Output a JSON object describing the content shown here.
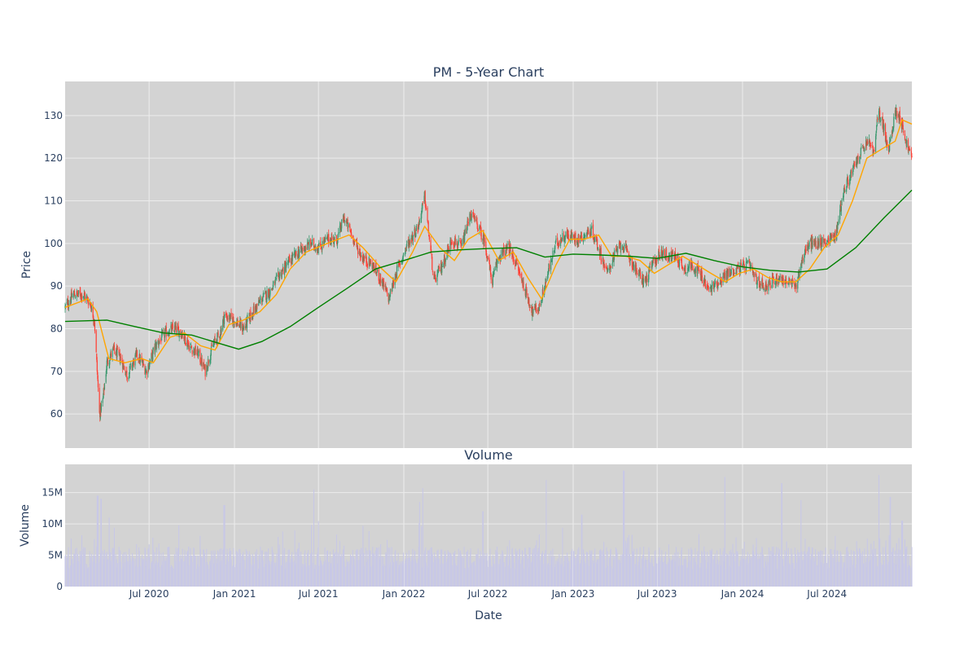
{
  "chart_data": [
    {
      "type": "candlestick",
      "title": "PM - 5-Year Chart",
      "ylabel": "Price",
      "ylim": [
        52,
        138
      ],
      "yticks": [
        60,
        70,
        80,
        90,
        100,
        110,
        120,
        130
      ],
      "x_range": [
        "2020-01-02",
        "2024-12-31"
      ],
      "grid": true,
      "legend": "none",
      "colors": {
        "plot_bg": "#d3d3d3",
        "increasing": "#3d9970",
        "decreasing": "#ff4136",
        "ma_short": "#ffa500",
        "ma_long": "#008000",
        "grid": "#ececec"
      },
      "price_path": [
        [
          "2020-01-02",
          85
        ],
        [
          "2020-01-20",
          88
        ],
        [
          "2020-02-10",
          88
        ],
        [
          "2020-02-25",
          86
        ],
        [
          "2020-03-05",
          82
        ],
        [
          "2020-03-16",
          60
        ],
        [
          "2020-03-23",
          63
        ],
        [
          "2020-04-01",
          72
        ],
        [
          "2020-04-15",
          75
        ],
        [
          "2020-05-01",
          73
        ],
        [
          "2020-05-15",
          69
        ],
        [
          "2020-06-05",
          74
        ],
        [
          "2020-06-25",
          70
        ],
        [
          "2020-07-15",
          76
        ],
        [
          "2020-08-05",
          79
        ],
        [
          "2020-08-25",
          80
        ],
        [
          "2020-09-10",
          79
        ],
        [
          "2020-09-25",
          76
        ],
        [
          "2020-10-15",
          74
        ],
        [
          "2020-10-30",
          70
        ],
        [
          "2020-11-15",
          76
        ],
        [
          "2020-12-01",
          79
        ],
        [
          "2020-12-10",
          83
        ],
        [
          "2021-01-01",
          82
        ],
        [
          "2021-01-20",
          80
        ],
        [
          "2021-02-10",
          84
        ],
        [
          "2021-03-01",
          87
        ],
        [
          "2021-03-20",
          89
        ],
        [
          "2021-04-10",
          93
        ],
        [
          "2021-05-01",
          96
        ],
        [
          "2021-05-20",
          98
        ],
        [
          "2021-06-15",
          100
        ],
        [
          "2021-07-01",
          99
        ],
        [
          "2021-07-20",
          101
        ],
        [
          "2021-08-10",
          101
        ],
        [
          "2021-08-25",
          106
        ],
        [
          "2021-09-15",
          101
        ],
        [
          "2021-10-01",
          97
        ],
        [
          "2021-10-25",
          95
        ],
        [
          "2021-11-15",
          91
        ],
        [
          "2021-11-30",
          87
        ],
        [
          "2021-12-15",
          93
        ],
        [
          "2022-01-10",
          100
        ],
        [
          "2022-02-01",
          104
        ],
        [
          "2022-02-15",
          111
        ],
        [
          "2022-03-07",
          91
        ],
        [
          "2022-03-25",
          95
        ],
        [
          "2022-04-15",
          101
        ],
        [
          "2022-05-05",
          99
        ],
        [
          "2022-05-25",
          107
        ],
        [
          "2022-06-10",
          104
        ],
        [
          "2022-06-25",
          100
        ],
        [
          "2022-07-10",
          91
        ],
        [
          "2022-07-25",
          97
        ],
        [
          "2022-08-15",
          99
        ],
        [
          "2022-09-01",
          95
        ],
        [
          "2022-09-20",
          89
        ],
        [
          "2022-10-05",
          84
        ],
        [
          "2022-10-20",
          85
        ],
        [
          "2022-11-05",
          92
        ],
        [
          "2022-11-25",
          100
        ],
        [
          "2022-12-15",
          102
        ],
        [
          "2023-01-10",
          101
        ],
        [
          "2023-01-25",
          102
        ],
        [
          "2023-02-10",
          103
        ],
        [
          "2023-02-28",
          98
        ],
        [
          "2023-03-15",
          93
        ],
        [
          "2023-03-30",
          97
        ],
        [
          "2023-04-15",
          100
        ],
        [
          "2023-05-01",
          97
        ],
        [
          "2023-05-20",
          93
        ],
        [
          "2023-06-05",
          91
        ],
        [
          "2023-06-20",
          95
        ],
        [
          "2023-07-10",
          98
        ],
        [
          "2023-07-25",
          97
        ],
        [
          "2023-08-10",
          97
        ],
        [
          "2023-08-30",
          94
        ],
        [
          "2023-09-15",
          95
        ],
        [
          "2023-10-01",
          93
        ],
        [
          "2023-10-20",
          89
        ],
        [
          "2023-11-10",
          91
        ],
        [
          "2023-12-01",
          93
        ],
        [
          "2023-12-20",
          94
        ],
        [
          "2024-01-15",
          95
        ],
        [
          "2024-02-01",
          91
        ],
        [
          "2024-02-20",
          90
        ],
        [
          "2024-03-05",
          91
        ],
        [
          "2024-03-20",
          92
        ],
        [
          "2024-04-05",
          91
        ],
        [
          "2024-04-25",
          90
        ],
        [
          "2024-05-10",
          97
        ],
        [
          "2024-05-25",
          100
        ],
        [
          "2024-06-15",
          100
        ],
        [
          "2024-07-05",
          101
        ],
        [
          "2024-07-20",
          102
        ],
        [
          "2024-08-05",
          112
        ],
        [
          "2024-08-25",
          117
        ],
        [
          "2024-09-15",
          122
        ],
        [
          "2024-09-30",
          124
        ],
        [
          "2024-10-10",
          121
        ],
        [
          "2024-10-20",
          131
        ],
        [
          "2024-10-30",
          128
        ],
        [
          "2024-11-10",
          121
        ],
        [
          "2024-11-25",
          131
        ],
        [
          "2024-12-05",
          130
        ],
        [
          "2024-12-18",
          124
        ],
        [
          "2024-12-31",
          120
        ]
      ],
      "ma_short_path": [
        [
          "2020-01-02",
          85
        ],
        [
          "2020-02-20",
          87
        ],
        [
          "2020-03-10",
          84
        ],
        [
          "2020-04-05",
          73
        ],
        [
          "2020-05-10",
          72
        ],
        [
          "2020-06-15",
          73
        ],
        [
          "2020-07-10",
          72
        ],
        [
          "2020-08-15",
          78
        ],
        [
          "2020-09-15",
          79
        ],
        [
          "2020-10-20",
          76
        ],
        [
          "2020-11-20",
          75
        ],
        [
          "2020-12-20",
          81
        ],
        [
          "2021-01-20",
          82
        ],
        [
          "2021-02-25",
          84
        ],
        [
          "2021-04-01",
          88
        ],
        [
          "2021-05-01",
          94
        ],
        [
          "2021-06-05",
          98
        ],
        [
          "2021-07-20",
          100
        ],
        [
          "2021-09-05",
          102
        ],
        [
          "2021-10-05",
          99
        ],
        [
          "2021-11-15",
          94
        ],
        [
          "2021-12-15",
          91
        ],
        [
          "2022-01-20",
          98
        ],
        [
          "2022-02-15",
          104
        ],
        [
          "2022-03-20",
          99
        ],
        [
          "2022-04-20",
          96
        ],
        [
          "2022-05-20",
          101
        ],
        [
          "2022-06-20",
          103
        ],
        [
          "2022-07-25",
          96
        ],
        [
          "2022-08-25",
          98
        ],
        [
          "2022-09-25",
          92
        ],
        [
          "2022-10-25",
          87
        ],
        [
          "2022-11-25",
          95
        ],
        [
          "2022-12-25",
          101
        ],
        [
          "2023-01-25",
          101
        ],
        [
          "2023-02-25",
          102
        ],
        [
          "2023-03-25",
          97
        ],
        [
          "2023-04-25",
          97
        ],
        [
          "2023-05-25",
          96
        ],
        [
          "2023-06-25",
          93
        ],
        [
          "2023-07-25",
          95
        ],
        [
          "2023-08-25",
          97
        ],
        [
          "2023-09-25",
          95
        ],
        [
          "2023-10-25",
          93
        ],
        [
          "2023-11-25",
          91
        ],
        [
          "2023-12-25",
          93
        ],
        [
          "2024-01-25",
          94
        ],
        [
          "2024-02-25",
          92
        ],
        [
          "2024-03-25",
          91
        ],
        [
          "2024-04-25",
          91
        ],
        [
          "2024-05-25",
          94
        ],
        [
          "2024-06-25",
          99
        ],
        [
          "2024-07-25",
          102
        ],
        [
          "2024-08-25",
          110
        ],
        [
          "2024-09-25",
          120
        ],
        [
          "2024-10-25",
          122
        ],
        [
          "2024-11-25",
          124
        ],
        [
          "2024-12-10",
          129
        ],
        [
          "2024-12-31",
          128
        ]
      ],
      "ma_long_path": [
        [
          "2020-01-02",
          81.7
        ],
        [
          "2020-04-01",
          82
        ],
        [
          "2020-06-01",
          80.5
        ],
        [
          "2020-08-01",
          79
        ],
        [
          "2020-10-01",
          78.5
        ],
        [
          "2020-12-01",
          76.5
        ],
        [
          "2021-01-10",
          75.2
        ],
        [
          "2021-03-01",
          77
        ],
        [
          "2021-05-01",
          80.5
        ],
        [
          "2021-07-01",
          85
        ],
        [
          "2021-09-01",
          89.5
        ],
        [
          "2021-11-01",
          94
        ],
        [
          "2022-01-01",
          96
        ],
        [
          "2022-03-01",
          98
        ],
        [
          "2022-05-01",
          98.5
        ],
        [
          "2022-07-01",
          98.8
        ],
        [
          "2022-09-01",
          99
        ],
        [
          "2022-11-01",
          96.8
        ],
        [
          "2023-01-01",
          97.5
        ],
        [
          "2023-03-01",
          97.3
        ],
        [
          "2023-05-01",
          97
        ],
        [
          "2023-07-01",
          96.5
        ],
        [
          "2023-09-01",
          97.7
        ],
        [
          "2023-11-01",
          96
        ],
        [
          "2024-01-01",
          94.5
        ],
        [
          "2024-03-01",
          93.7
        ],
        [
          "2024-05-01",
          93.3
        ],
        [
          "2024-07-01",
          94
        ],
        [
          "2024-09-01",
          99
        ],
        [
          "2024-11-01",
          106
        ],
        [
          "2024-12-31",
          112.5
        ]
      ]
    },
    {
      "type": "bar",
      "title": "Volume",
      "xlabel": "Date",
      "ylabel": "Volume",
      "ylim": [
        0,
        19500000
      ],
      "yticks": [
        0,
        5000000,
        10000000,
        15000000
      ],
      "ytick_labels": [
        "0",
        "5M",
        "10M",
        "15M"
      ],
      "x_ticks": [
        {
          "date": "2020-07-01",
          "label": "Jul 2020"
        },
        {
          "date": "2021-01-01",
          "label": "Jan 2021"
        },
        {
          "date": "2021-07-01",
          "label": "Jul 2021"
        },
        {
          "date": "2022-01-01",
          "label": "Jan 2022"
        },
        {
          "date": "2022-07-01",
          "label": "Jul 2022"
        },
        {
          "date": "2023-01-01",
          "label": "Jan 2023"
        },
        {
          "date": "2023-07-01",
          "label": "Jul 2023"
        },
        {
          "date": "2024-01-01",
          "label": "Jan 2024"
        },
        {
          "date": "2024-07-01",
          "label": "Jul 2024"
        }
      ],
      "colors": {
        "bar": "#c8c8e6",
        "plot_bg": "#d3d3d3"
      },
      "volume_peaks": [
        [
          "2020-03-12",
          14500000
        ],
        [
          "2020-03-20",
          14000000
        ],
        [
          "2020-04-05",
          11000000
        ],
        [
          "2020-12-10",
          13000000
        ],
        [
          "2021-06-20",
          15500000
        ],
        [
          "2022-02-12",
          15700000
        ],
        [
          "2022-02-05",
          13500000
        ],
        [
          "2022-06-20",
          12000000
        ],
        [
          "2022-11-05",
          17000000
        ],
        [
          "2023-01-20",
          11500000
        ],
        [
          "2023-04-20",
          18500000
        ],
        [
          "2023-11-25",
          17500000
        ],
        [
          "2024-03-25",
          16500000
        ],
        [
          "2024-05-05",
          13800000
        ],
        [
          "2024-10-20",
          17800000
        ],
        [
          "2024-11-15",
          14300000
        ],
        [
          "2024-12-10",
          10500000
        ]
      ]
    }
  ]
}
